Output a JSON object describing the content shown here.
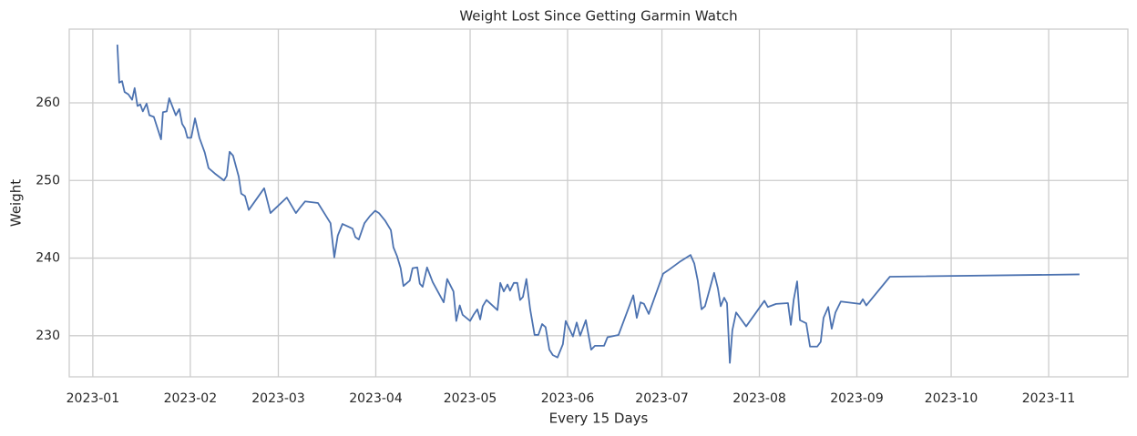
{
  "chart_data": {
    "type": "line",
    "title": "Weight Lost Since Getting Garmin Watch",
    "xlabel": "Every 15 Days",
    "ylabel": "Weight",
    "color": "#4c72b0",
    "grid": true,
    "x": [
      8.8,
      9.4,
      10.3,
      11.1,
      12.3,
      13.5,
      14.3,
      15.2,
      16.1,
      16.9,
      18.1,
      19.0,
      20.4,
      22.7,
      23.3,
      24.5,
      25.3,
      27.4,
      28.5,
      29.4,
      30.3,
      31.1,
      32.3,
      33.5,
      34.9,
      36.6,
      37.8,
      39.8,
      42.7,
      43.6,
      44.5,
      45.6,
      47.4,
      48.2,
      49.4,
      50.6,
      55.5,
      57.5,
      62.7,
      65.6,
      67.1,
      68.5,
      72.6,
      76.6,
      77.8,
      78.9,
      80.4,
      83.6,
      84.5,
      85.6,
      87.4,
      89.1,
      90.8,
      92.0,
      94.0,
      95.8,
      96.6,
      97.8,
      98.9,
      99.8,
      101.8,
      102.7,
      104.2,
      105.0,
      105.9,
      107.3,
      109.1,
      112.6,
      113.7,
      115.7,
      116.6,
      117.7,
      118.6,
      121.0,
      122.1,
      123.3,
      124.2,
      125.0,
      126.2,
      129.7,
      130.6,
      131.7,
      132.9,
      133.7,
      134.9,
      136.0,
      136.9,
      137.8,
      138.9,
      140.1,
      141.5,
      142.7,
      143.9,
      145.0,
      146.2,
      147.3,
      148.8,
      150.5,
      151.4,
      153.7,
      154.9,
      156.0,
      157.8,
      159.5,
      160.7,
      163.6,
      164.7,
      168.2,
      172.9,
      174.0,
      175.2,
      176.3,
      177.8,
      182.4,
      183.9,
      187.6,
      191.1,
      192.3,
      193.4,
      194.6,
      195.7,
      197.2,
      198.6,
      199.8,
      200.7,
      201.8,
      202.7,
      203.6,
      204.4,
      205.6,
      208.8,
      214.6,
      215.7,
      218.3,
      222.1,
      223.0,
      223.9,
      225.0,
      225.9,
      227.9,
      229.1,
      231.4,
      232.5,
      233.4,
      234.9,
      236.0,
      237.2,
      238.9,
      245.0,
      245.9,
      247.0,
      254.5,
      314.8
    ],
    "values": [
      267.5,
      262.6,
      262.8,
      261.4,
      261.1,
      260.4,
      261.9,
      259.6,
      259.8,
      258.9,
      259.9,
      258.4,
      258.2,
      255.3,
      258.8,
      258.9,
      260.6,
      258.4,
      259.2,
      257.3,
      256.7,
      255.5,
      255.5,
      258.0,
      255.5,
      253.6,
      251.6,
      250.9,
      250.0,
      250.6,
      253.7,
      253.2,
      250.5,
      248.3,
      248.0,
      246.2,
      249.0,
      245.8,
      247.8,
      245.8,
      246.6,
      247.3,
      247.1,
      244.5,
      240.1,
      242.9,
      244.4,
      243.8,
      242.7,
      242.4,
      244.5,
      245.4,
      246.1,
      245.8,
      244.8,
      243.6,
      241.4,
      240.2,
      238.7,
      236.4,
      237.1,
      238.7,
      238.8,
      236.7,
      236.3,
      238.8,
      236.9,
      234.3,
      237.3,
      235.7,
      231.9,
      233.9,
      232.7,
      231.9,
      232.7,
      233.4,
      232.1,
      233.8,
      234.6,
      233.3,
      236.8,
      235.7,
      236.6,
      235.8,
      236.8,
      236.8,
      234.6,
      235.0,
      237.3,
      233.4,
      230.1,
      230.1,
      231.5,
      231.1,
      228.2,
      227.5,
      227.2,
      228.9,
      231.9,
      229.9,
      231.7,
      230.0,
      232.0,
      228.2,
      228.7,
      228.7,
      229.8,
      230.1,
      235.2,
      232.3,
      234.3,
      234.1,
      232.8,
      238.0,
      238.4,
      239.5,
      240.4,
      239.3,
      237.1,
      233.4,
      233.8,
      236.0,
      238.1,
      236.1,
      233.8,
      234.9,
      234.2,
      226.5,
      230.7,
      233.0,
      231.2,
      234.5,
      233.7,
      234.1,
      234.2,
      231.4,
      234.6,
      237.0,
      232.0,
      231.6,
      228.6,
      228.6,
      229.2,
      232.3,
      233.7,
      230.9,
      233.0,
      234.4,
      234.1,
      234.7,
      233.9,
      237.6,
      237.9
    ],
    "xlim": [
      -6.5,
      330.2
    ],
    "ylim": [
      224.7,
      269.5
    ],
    "xticks": [
      {
        "value": 1,
        "label": "2023-01"
      },
      {
        "value": 32,
        "label": "2023-02"
      },
      {
        "value": 60,
        "label": "2023-03"
      },
      {
        "value": 91,
        "label": "2023-04"
      },
      {
        "value": 121,
        "label": "2023-05"
      },
      {
        "value": 152,
        "label": "2023-06"
      },
      {
        "value": 182,
        "label": "2023-07"
      },
      {
        "value": 213,
        "label": "2023-08"
      },
      {
        "value": 244,
        "label": "2023-09"
      },
      {
        "value": 274,
        "label": "2023-10"
      },
      {
        "value": 305,
        "label": "2023-11"
      }
    ],
    "yticks": [
      230,
      240,
      250,
      260
    ]
  }
}
